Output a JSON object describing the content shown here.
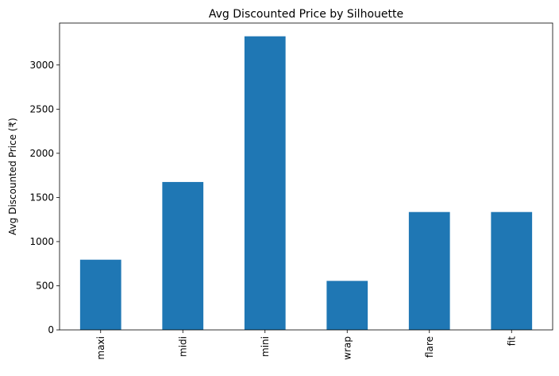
{
  "chart_data": {
    "type": "bar",
    "title": "Avg Discounted Price by Silhouette",
    "xlabel": "",
    "ylabel": "Avg Discounted Price (₹)",
    "categories": [
      "maxi",
      "midi",
      "mini",
      "wrap",
      "flare",
      "fit"
    ],
    "values": [
      795,
      1675,
      3325,
      555,
      1335,
      1335
    ],
    "ylim": [
      0,
      3475
    ],
    "yticks": [
      0,
      500,
      1000,
      1500,
      2000,
      2500,
      3000
    ],
    "grid": false,
    "legend": "none",
    "bar_color": "#1f77b4",
    "orientation_of_xtick_labels": "rotated-vertical"
  }
}
